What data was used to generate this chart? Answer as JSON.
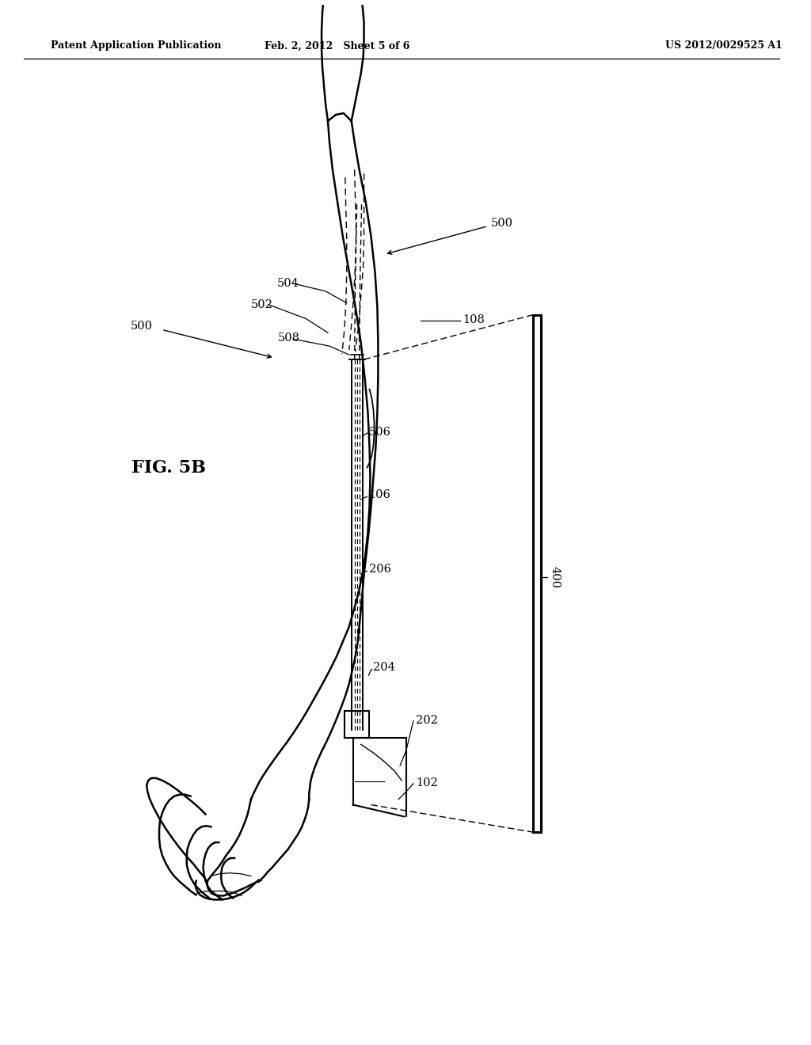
{
  "header_left": "Patent Application Publication",
  "header_center": "Feb. 2, 2012   Sheet 5 of 6",
  "header_right": "US 2012/0029525 A1",
  "fig_label": "FIG. 5B",
  "bg_color": "#ffffff",
  "lc": "#000000"
}
